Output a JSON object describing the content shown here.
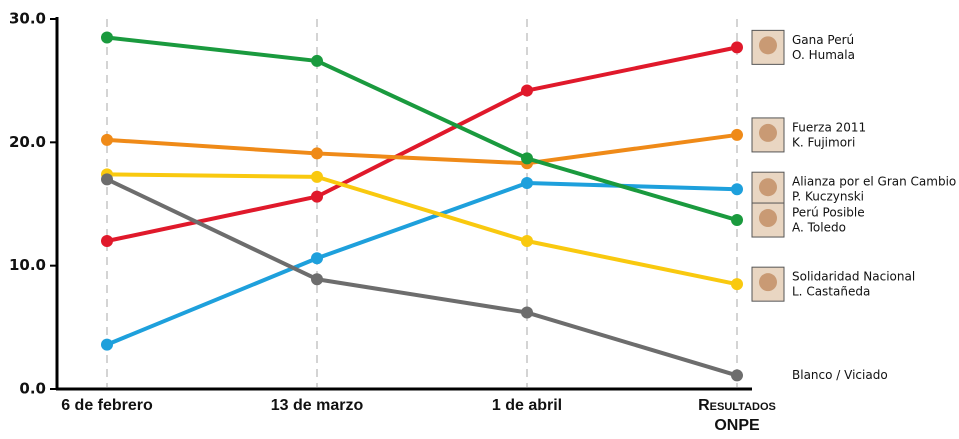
{
  "chart_data": {
    "type": "line",
    "categories": [
      "6 de febrero",
      "13 de marzo",
      "1 de abril",
      "Resultados ONPE"
    ],
    "series": [
      {
        "name": "Gana Perú",
        "candidate": "O. Humala",
        "color": "#e0192b",
        "values": [
          12.0,
          15.6,
          24.2,
          27.7
        ]
      },
      {
        "name": "Fuerza 2011",
        "candidate": "K. Fujimori",
        "color": "#ef8a18",
        "values": [
          20.2,
          19.1,
          18.3,
          20.6
        ]
      },
      {
        "name": "Alianza por el Gran Cambio",
        "candidate": "P. Kuczynski",
        "color": "#1ea0dc",
        "values": [
          3.6,
          10.6,
          16.7,
          16.2
        ]
      },
      {
        "name": "Perú Posible",
        "candidate": "A. Toledo",
        "color": "#1a9a3e",
        "values": [
          28.5,
          26.6,
          18.7,
          13.7
        ]
      },
      {
        "name": "Solidaridad Nacional",
        "candidate": "L. Castañeda",
        "color": "#f9c90f",
        "values": [
          17.4,
          17.2,
          12.0,
          8.5
        ]
      },
      {
        "name": "Blanco / Viciado",
        "color": "#6d6d6d",
        "values": [
          17.0,
          8.9,
          6.2,
          1.1
        ]
      }
    ],
    "ylim": [
      0,
      30
    ],
    "yticks": [
      {
        "value": 0,
        "label": "0.0"
      },
      {
        "value": 10,
        "label": "10.0"
      },
      {
        "value": 20,
        "label": "20.0"
      },
      {
        "value": 30,
        "label": "30.0"
      }
    ],
    "xgrid": true
  }
}
